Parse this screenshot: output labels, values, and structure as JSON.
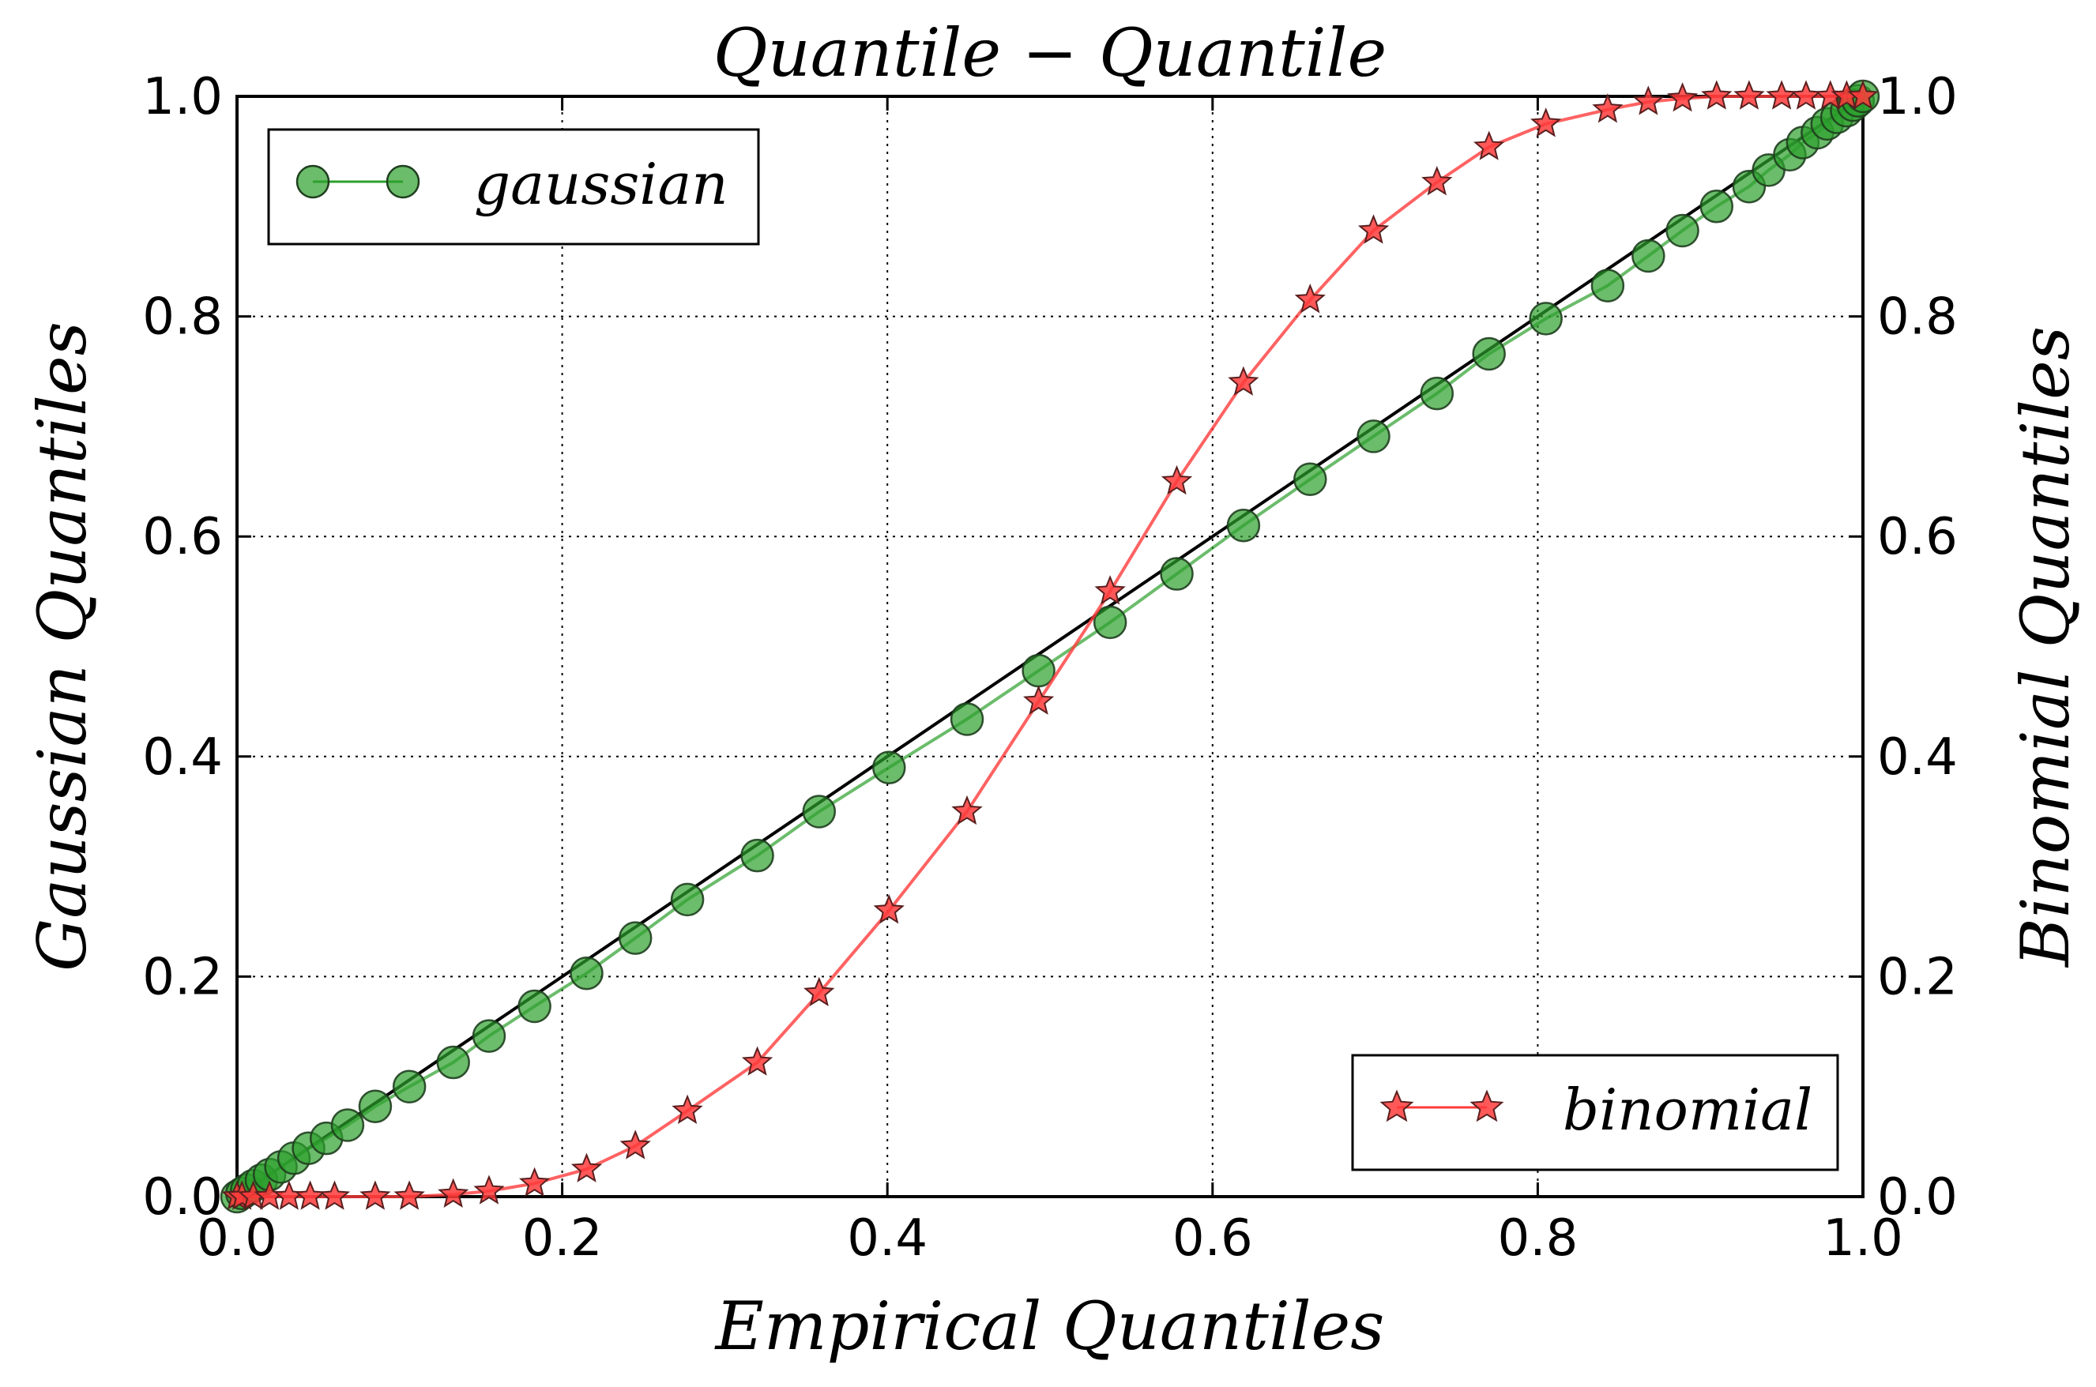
{
  "chart_data": {
    "type": "line",
    "title": "Quantile − Quantile",
    "xlabel": "Empirical Quantiles",
    "ylabel_left": "Gaussian Quantiles",
    "ylabel_right": "Binomial Quantiles",
    "xlim": [
      0.0,
      1.0
    ],
    "ylim_left": [
      0.0,
      1.0
    ],
    "ylim_right": [
      0.0,
      1.0
    ],
    "grid": true,
    "x_ticks": [
      "0.0",
      "0.2",
      "0.4",
      "0.6",
      "0.8",
      "1.0"
    ],
    "y_ticks_left": [
      "0.0",
      "0.2",
      "0.4",
      "0.6",
      "0.8",
      "1.0"
    ],
    "y_ticks_right": [
      "0.0",
      "0.2",
      "0.4",
      "0.6",
      "0.8",
      "1.0"
    ],
    "reference_line": {
      "x": [
        0.0,
        1.0
      ],
      "y": [
        0.0,
        1.0
      ],
      "color": "#000000"
    },
    "series": [
      {
        "name": "gaussian",
        "axis": "left",
        "marker": "circle",
        "color": "#2ca02c",
        "legend_position": "upper-left",
        "x": [
          0.0,
          0.003,
          0.006,
          0.01,
          0.015,
          0.02,
          0.027,
          0.035,
          0.044,
          0.055,
          0.068,
          0.085,
          0.106,
          0.133,
          0.155,
          0.183,
          0.215,
          0.245,
          0.277,
          0.32,
          0.358,
          0.401,
          0.449,
          0.493,
          0.537,
          0.578,
          0.619,
          0.66,
          0.699,
          0.738,
          0.77,
          0.805,
          0.843,
          0.868,
          0.889,
          0.91,
          0.93,
          0.942,
          0.955,
          0.963,
          0.972,
          0.978,
          0.984,
          0.99,
          0.994,
          0.997,
          1.0
        ],
        "y": [
          0.0,
          0.003,
          0.006,
          0.01,
          0.015,
          0.02,
          0.027,
          0.035,
          0.044,
          0.053,
          0.065,
          0.082,
          0.1,
          0.122,
          0.146,
          0.173,
          0.203,
          0.235,
          0.27,
          0.31,
          0.35,
          0.39,
          0.434,
          0.478,
          0.522,
          0.566,
          0.61,
          0.652,
          0.691,
          0.73,
          0.766,
          0.798,
          0.828,
          0.855,
          0.878,
          0.9,
          0.918,
          0.933,
          0.947,
          0.958,
          0.967,
          0.975,
          0.981,
          0.987,
          0.992,
          0.996,
          1.0
        ]
      },
      {
        "name": "binomial",
        "axis": "right",
        "marker": "star",
        "color": "#ff3b3b",
        "legend_position": "lower-right",
        "x": [
          0.0,
          0.003,
          0.01,
          0.02,
          0.032,
          0.045,
          0.06,
          0.085,
          0.106,
          0.133,
          0.155,
          0.183,
          0.215,
          0.245,
          0.277,
          0.32,
          0.358,
          0.401,
          0.449,
          0.493,
          0.537,
          0.578,
          0.619,
          0.66,
          0.699,
          0.738,
          0.77,
          0.805,
          0.843,
          0.868,
          0.889,
          0.91,
          0.93,
          0.95,
          0.965,
          0.98,
          0.99,
          1.0
        ],
        "y": [
          0.0,
          0.0,
          0.0,
          0.0,
          0.0,
          0.0,
          0.0,
          0.0,
          0.0,
          0.002,
          0.005,
          0.012,
          0.025,
          0.046,
          0.078,
          0.122,
          0.185,
          0.26,
          0.35,
          0.45,
          0.55,
          0.65,
          0.74,
          0.815,
          0.878,
          0.922,
          0.954,
          0.975,
          0.988,
          0.995,
          0.998,
          1.0,
          1.0,
          1.0,
          1.0,
          1.0,
          1.0,
          1.0
        ]
      }
    ]
  }
}
